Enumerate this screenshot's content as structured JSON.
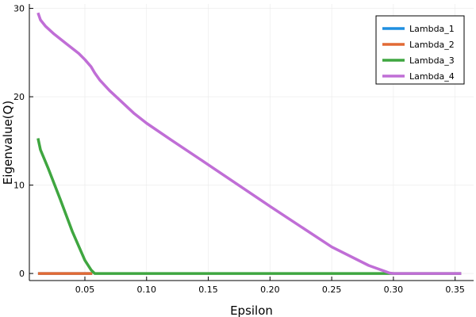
{
  "chart_data": {
    "type": "line",
    "xlabel": "Epsilon",
    "ylabel": "Eigenvalue(Q)",
    "xlim": [
      0.005,
      0.365
    ],
    "ylim": [
      -0.8,
      30.5
    ],
    "xticks": [
      {
        "v": 0.05,
        "label": "0.05"
      },
      {
        "v": 0.1,
        "label": "0.10"
      },
      {
        "v": 0.15,
        "label": "0.15"
      },
      {
        "v": 0.2,
        "label": "0.20"
      },
      {
        "v": 0.25,
        "label": "0.25"
      },
      {
        "v": 0.3,
        "label": "0.30"
      },
      {
        "v": 0.35,
        "label": "0.35"
      }
    ],
    "yticks": [
      {
        "v": 0,
        "label": "0"
      },
      {
        "v": 10,
        "label": "10"
      },
      {
        "v": 20,
        "label": "20"
      },
      {
        "v": 30,
        "label": "30"
      }
    ],
    "grid": true,
    "legend_position": "top-right",
    "series": [
      {
        "name": "Lambda_1",
        "color": "#1f8fe0",
        "x": [
          0.012,
          0.056
        ],
        "y": [
          0,
          0
        ]
      },
      {
        "name": "Lambda_2",
        "color": "#e26a35",
        "x": [
          0.012,
          0.056
        ],
        "y": [
          0,
          0
        ]
      },
      {
        "name": "Lambda_3",
        "color": "#3fa640",
        "x": [
          0.012,
          0.014,
          0.02,
          0.03,
          0.04,
          0.05,
          0.055,
          0.058,
          0.1,
          0.15,
          0.2,
          0.25,
          0.3,
          0.355
        ],
        "y": [
          15.3,
          14.0,
          12.0,
          8.4,
          4.7,
          1.5,
          0.4,
          0,
          0,
          0,
          0,
          0,
          0,
          0
        ]
      },
      {
        "name": "Lambda_4",
        "color": "#c06ed6",
        "x": [
          0.012,
          0.014,
          0.018,
          0.025,
          0.035,
          0.045,
          0.05,
          0.055,
          0.058,
          0.062,
          0.07,
          0.08,
          0.09,
          0.1,
          0.12,
          0.15,
          0.2,
          0.25,
          0.28,
          0.297,
          0.3,
          0.33,
          0.355
        ],
        "y": [
          29.5,
          28.7,
          28.0,
          27.1,
          26.0,
          24.9,
          24.2,
          23.4,
          22.7,
          21.9,
          20.7,
          19.4,
          18.1,
          17.0,
          15.1,
          12.3,
          7.6,
          3.0,
          0.9,
          0.05,
          0,
          0,
          0
        ]
      }
    ]
  }
}
